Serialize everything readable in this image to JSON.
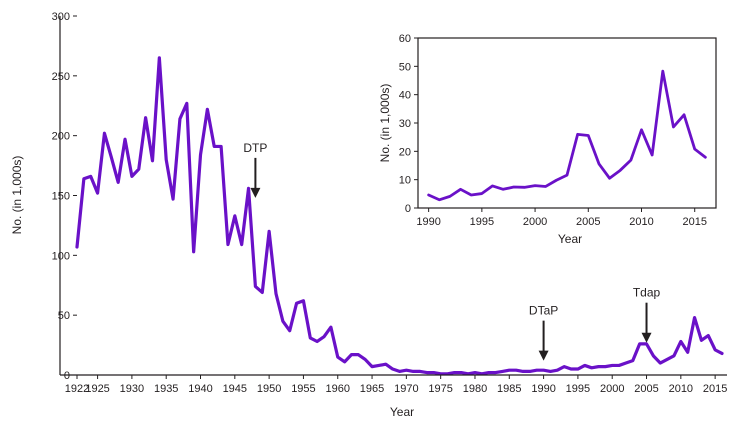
{
  "chart_data": [
    {
      "type": "line",
      "xlabel": "Year",
      "ylabel": "No. (in 1,000s)",
      "xlim": [
        1922,
        2016
      ],
      "ylim": [
        0,
        300
      ],
      "x_ticks": [
        1922,
        1925,
        1930,
        1935,
        1940,
        1945,
        1950,
        1955,
        1960,
        1965,
        1970,
        1975,
        1980,
        1985,
        1990,
        1995,
        2000,
        2005,
        2010,
        2015
      ],
      "x_tick_labels": [
        "1922",
        "1925",
        "1930",
        "1935",
        "1940",
        "1945",
        "1950",
        "1955",
        "1960",
        "1965",
        "1970",
        "1975",
        "1980",
        "1985",
        "1990",
        "1995",
        "2000",
        "2005",
        "2010",
        "2015"
      ],
      "y_ticks": [
        0,
        50,
        100,
        150,
        200,
        250,
        300
      ],
      "y_tick_labels": [
        "0",
        "50",
        "100",
        "150",
        "200",
        "250",
        "300"
      ],
      "grid": false,
      "series_color": "#6a11c8",
      "series": [
        {
          "x": [
            1922,
            1923,
            1924,
            1925,
            1926,
            1927,
            1928,
            1929,
            1930,
            1931,
            1932,
            1933,
            1934,
            1935,
            1936,
            1937,
            1938,
            1939,
            1940,
            1941,
            1942,
            1943,
            1944,
            1945,
            1946,
            1947,
            1948,
            1949,
            1950,
            1951,
            1952,
            1953,
            1954,
            1955,
            1956,
            1957,
            1958,
            1959,
            1960,
            1961,
            1962,
            1963,
            1964,
            1965,
            1966,
            1967,
            1968,
            1969,
            1970,
            1971,
            1972,
            1973,
            1974,
            1975,
            1976,
            1977,
            1978,
            1979,
            1980,
            1981,
            1982,
            1983,
            1984,
            1985,
            1986,
            1987,
            1988,
            1989,
            1990,
            1991,
            1992,
            1993,
            1994,
            1995,
            1996,
            1997,
            1998,
            1999,
            2000,
            2001,
            2002,
            2003,
            2004,
            2005,
            2006,
            2007,
            2008,
            2009,
            2010,
            2011,
            2012,
            2013,
            2014,
            2015,
            2016
          ],
          "values": [
            107,
            164,
            166,
            152,
            202,
            182,
            161,
            197,
            166,
            172,
            215,
            179,
            265,
            180,
            147,
            214,
            227,
            103,
            184,
            222,
            191,
            191,
            109,
            133,
            109,
            156,
            74,
            69,
            120,
            68,
            45,
            37,
            60,
            62,
            31,
            28,
            32,
            40,
            15,
            11,
            17,
            17,
            13,
            7,
            8,
            9,
            5,
            3,
            4,
            3,
            3,
            2,
            2,
            1,
            1,
            2,
            2,
            1,
            2,
            1,
            2,
            2,
            3,
            4,
            4,
            3,
            3,
            4,
            4,
            3,
            4,
            7,
            5,
            5,
            8,
            6,
            7,
            7,
            8,
            8,
            10,
            12,
            26,
            26,
            16,
            10,
            13,
            16,
            28,
            19,
            48,
            29,
            33,
            21,
            18
          ]
        }
      ],
      "annotations": [
        {
          "label": "DTP",
          "x": 1948,
          "y": 148
        },
        {
          "label": "DTaP",
          "x": 1990,
          "y": 12
        },
        {
          "label": "Tdap",
          "x": 2005,
          "y": 27
        }
      ]
    },
    {
      "type": "line",
      "xlabel": "Year",
      "ylabel": "No. (in 1,000s)",
      "xlim": [
        1989,
        2017
      ],
      "ylim": [
        0,
        60
      ],
      "x_ticks": [
        1990,
        1995,
        2000,
        2005,
        2010,
        2015
      ],
      "x_tick_labels": [
        "1990",
        "1995",
        "2000",
        "2005",
        "2010",
        "2015"
      ],
      "y_ticks": [
        0,
        10,
        20,
        30,
        40,
        50,
        60
      ],
      "y_tick_labels": [
        "0",
        "10",
        "20",
        "30",
        "40",
        "50",
        "60"
      ],
      "grid": false,
      "series_color": "#6a11c8",
      "series": [
        {
          "x": [
            1990,
            1991,
            1992,
            1993,
            1994,
            1995,
            1996,
            1997,
            1998,
            1999,
            2000,
            2001,
            2002,
            2003,
            2004,
            2005,
            2006,
            2007,
            2008,
            2009,
            2010,
            2011,
            2012,
            2013,
            2014,
            2015,
            2016
          ],
          "values": [
            4.6,
            2.9,
            4.1,
            6.6,
            4.6,
            5.1,
            7.8,
            6.6,
            7.4,
            7.3,
            7.9,
            7.6,
            9.8,
            11.6,
            26.0,
            25.6,
            15.6,
            10.5,
            13.3,
            16.9,
            27.6,
            18.7,
            48.3,
            28.6,
            32.9,
            20.8,
            17.9
          ]
        }
      ]
    }
  ]
}
